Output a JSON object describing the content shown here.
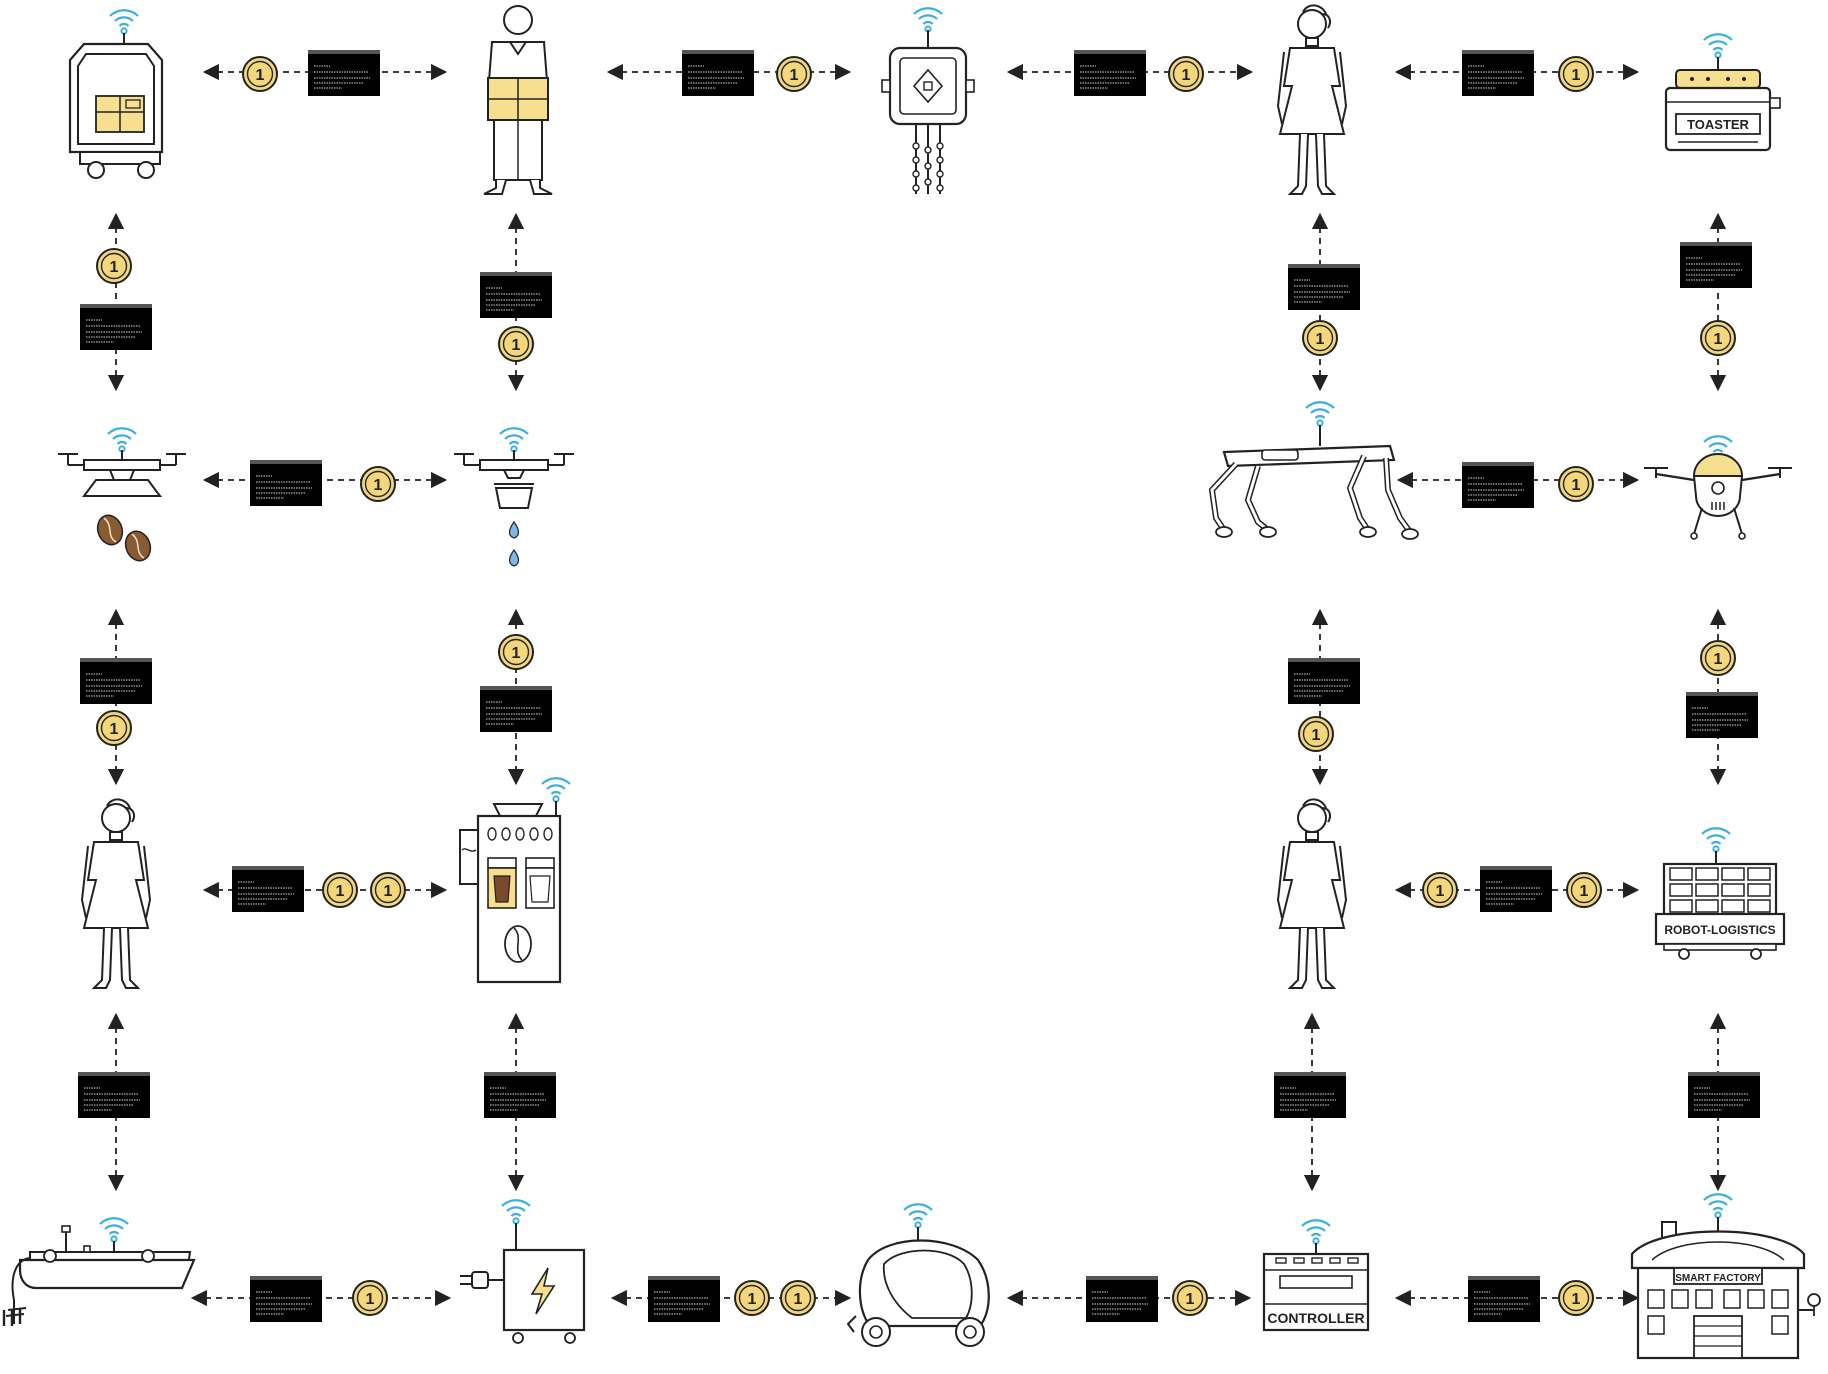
{
  "labels": {
    "toaster": "TOASTER",
    "robot_logistics": "ROBOT-LOGISTICS",
    "smart_factory": "SMART FACTORY",
    "controller": "CONTROLLER"
  },
  "token_value": "1",
  "colors": {
    "coin_fill": "#f3d77a",
    "coin_stroke": "#222222",
    "wifi": "#3ab0e2",
    "package": "#f6e08f",
    "coffee_bean": "#8a5a32",
    "water_drop": "#7fb7e6",
    "line": "#222222",
    "message_box": "#000000"
  }
}
